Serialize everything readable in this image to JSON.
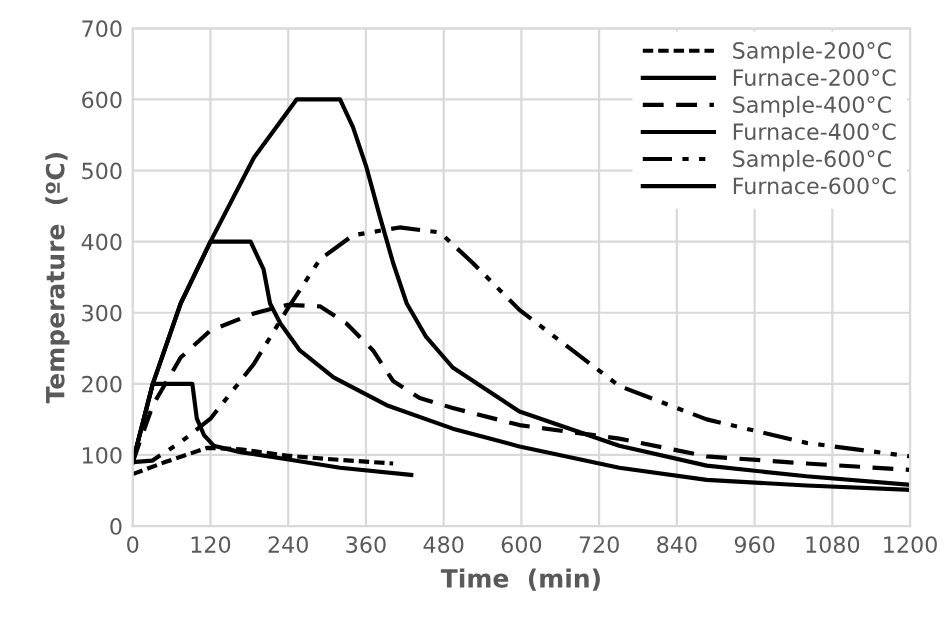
{
  "chart_data": {
    "type": "line",
    "xlabel": "Time  (min)",
    "ylabel": "Temperature  (ºC)",
    "xlim": [
      0,
      1200
    ],
    "xticks": [
      0,
      120,
      240,
      360,
      480,
      600,
      720,
      840,
      960,
      1080,
      1200
    ],
    "ylim": [
      0,
      700
    ],
    "yticks": [
      0,
      100,
      200,
      300,
      400,
      500,
      600,
      700
    ],
    "grid": true,
    "legend": "top right",
    "series": [
      {
        "name": "Sample-200°C",
        "color": "#000000",
        "line_style": "dotted",
        "x": [
          0,
          50,
          115,
          166,
          238,
          320,
          402
        ],
        "values": [
          73,
          90,
          110,
          108,
          99,
          93,
          88
        ]
      },
      {
        "name": "Furnace-200°C",
        "color": "#000000",
        "line_style": "solid",
        "x": [
          0,
          31,
          92,
          99,
          110,
          125,
          166,
          238,
          320,
          430
        ],
        "values": [
          90,
          200,
          200,
          151,
          128,
          113,
          104,
          94,
          82,
          72
        ]
      },
      {
        "name": "Sample-400°C",
        "color": "#000000",
        "line_style": "dashed",
        "x": [
          0,
          31,
          74,
          120,
          187,
          238,
          289,
          330,
          371,
          402,
          443,
          494,
          597,
          751,
          886,
          1040,
          1200
        ],
        "values": [
          90,
          170,
          237,
          275,
          299,
          311,
          309,
          285,
          247,
          204,
          180,
          166,
          142,
          123,
          98,
          88,
          79
        ]
      },
      {
        "name": "Furnace-400°C",
        "color": "#000000",
        "line_style": "solid",
        "x": [
          0,
          31,
          74,
          120,
          182,
          202,
          212,
          228,
          258,
          310,
          392,
          494,
          597,
          751,
          886,
          1040,
          1200
        ],
        "values": [
          90,
          200,
          313,
          400,
          400,
          361,
          313,
          285,
          247,
          209,
          170,
          137,
          112,
          82,
          65,
          57,
          51
        ]
      },
      {
        "name": "Sample-600°C",
        "color": "#000000",
        "line_style": "dashdot",
        "x": [
          0,
          30,
          74,
          120,
          187,
          238,
          289,
          340,
          412,
          474,
          525,
          597,
          679,
          751,
          886,
          1040,
          1200
        ],
        "values": [
          90,
          92,
          118,
          151,
          228,
          304,
          375,
          409,
          420,
          413,
          370,
          304,
          247,
          197,
          150,
          117,
          98
        ]
      },
      {
        "name": "Furnace-600°C",
        "color": "#000000",
        "line_style": "solid",
        "x": [
          0,
          31,
          74,
          120,
          187,
          253,
          320,
          340,
          361,
          381,
          402,
          423,
          453,
          494,
          597,
          751,
          886,
          1040,
          1200
        ],
        "values": [
          90,
          200,
          313,
          400,
          518,
          600,
          600,
          561,
          504,
          437,
          370,
          313,
          266,
          223,
          161,
          113,
          85,
          70,
          58
        ]
      }
    ]
  }
}
